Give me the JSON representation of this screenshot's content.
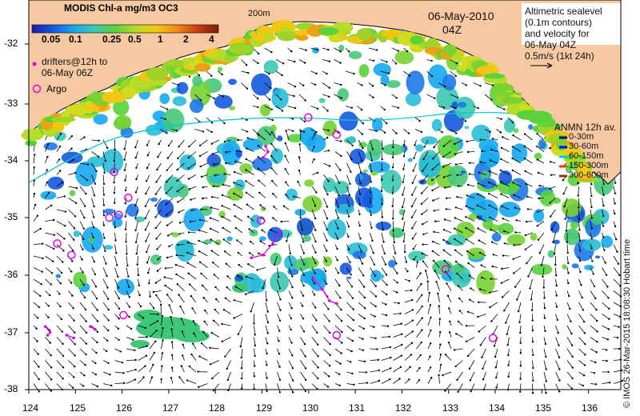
{
  "colorbar": {
    "title": "MODIS Chl-a mg/m3 OC3",
    "ticks": [
      "0.05",
      "0.1",
      "0.25",
      "0.5",
      "1",
      "2",
      "4"
    ],
    "gradient_colors": [
      "#1a1aa8",
      "#1458e0",
      "#14a8f0",
      "#3cc8b4",
      "#5ad23c",
      "#b4dc28",
      "#f0c814",
      "#f08c14",
      "#c83c14",
      "#7a1e0a"
    ]
  },
  "title": {
    "date": "06-May-2010",
    "hour": "04Z"
  },
  "altimetry_note": [
    "Altimetric sealevel",
    "(0.1m contours)",
    "and velocity for",
    "06-May 04Z",
    "0.5m/s (1kt 24h)"
  ],
  "drifters_note": [
    "drifters@12h to",
    "06-May 06Z"
  ],
  "argo_label": "Argo",
  "isobath_label": "200m",
  "anmn": {
    "title": "ANMN 12h av.",
    "depths": [
      {
        "label": "0-30m",
        "color": "#000080"
      },
      {
        "label": "30-60m",
        "color": "#0000ff"
      },
      {
        "label": "60-150m",
        "color": "#00c8ff"
      },
      {
        "label": "150-300m",
        "color": "#ff3c00"
      },
      {
        "label": "300-600m",
        "color": "#8c3c00"
      }
    ]
  },
  "y_axis": [
    "-32",
    "-33",
    "-34",
    "-35",
    "-36",
    "-37",
    "-38"
  ],
  "x_axis": [
    "124",
    "125",
    "126",
    "127",
    "128",
    "129",
    "130",
    "131",
    "132",
    "133",
    "134",
    "135",
    "136"
  ],
  "credit": "© IMOS 26-Mar-2015 18:08:30 Hobart time",
  "colors": {
    "land": "#f7c9a3",
    "coast": "#000000",
    "argo": "#e600e6",
    "drifter": "#e600e6",
    "isobath": "#00c8d7"
  },
  "argo_floats": [
    [
      129.9,
      -33.4
    ],
    [
      130.5,
      -33.7
    ],
    [
      125.8,
      -34.35
    ],
    [
      126.1,
      -34.8
    ],
    [
      125.9,
      -35.1
    ],
    [
      125.7,
      -35.15
    ],
    [
      128.9,
      -35.2
    ],
    [
      124.6,
      -35.6
    ],
    [
      124.9,
      -35.8
    ],
    [
      132.8,
      -36.05
    ],
    [
      126.0,
      -36.85
    ],
    [
      130.5,
      -37.2
    ],
    [
      133.8,
      -37.25
    ]
  ],
  "drifter_tracks": [
    [
      [
        129.0,
        -33.9
      ],
      [
        129.05,
        -34.0
      ],
      [
        128.95,
        -34.1
      ]
    ],
    [
      [
        129.3,
        -35.4
      ],
      [
        129.15,
        -35.6
      ],
      [
        128.95,
        -35.8
      ],
      [
        128.7,
        -35.85
      ]
    ],
    [
      [
        130.0,
        -36.2
      ],
      [
        130.2,
        -36.4
      ],
      [
        130.35,
        -36.6
      ],
      [
        130.5,
        -36.65
      ]
    ],
    [
      [
        124.35,
        -37.05
      ],
      [
        124.45,
        -37.15
      ],
      [
        124.4,
        -37.2
      ]
    ],
    [
      [
        124.8,
        -37.2
      ],
      [
        124.95,
        -37.25
      ]
    ],
    [
      [
        125.3,
        -37.05
      ],
      [
        125.4,
        -37.1
      ]
    ]
  ]
}
